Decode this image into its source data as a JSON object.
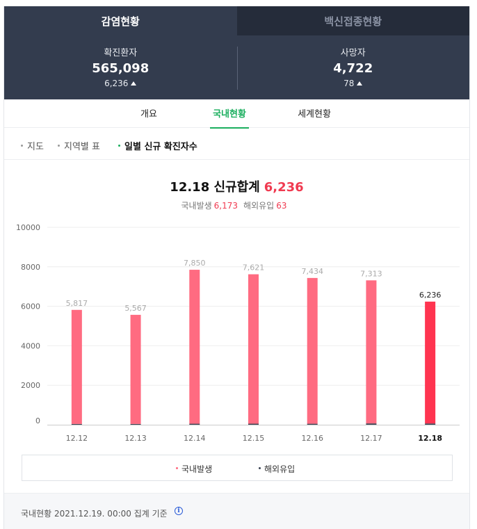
{
  "top_tabs": [
    {
      "label": "감염현황",
      "active": true
    },
    {
      "label": "백신접종현황",
      "active": false
    }
  ],
  "stats": {
    "confirmed": {
      "label": "확진환자",
      "value": "565,098",
      "change": "6,236"
    },
    "deaths": {
      "label": "사망자",
      "value": "4,722",
      "change": "78"
    }
  },
  "sub_tabs": [
    {
      "label": "개요",
      "active": false
    },
    {
      "label": "국내현황",
      "active": true
    },
    {
      "label": "세계현황",
      "active": false
    }
  ],
  "links": [
    {
      "label": "지도",
      "active": false
    },
    {
      "label": "지역별 표",
      "active": false
    },
    {
      "label": "일별 신규 확진자수",
      "active": true
    }
  ],
  "summary": {
    "date_label": "12.18 신규합계",
    "total": "6,236",
    "domestic_label": "국내발생",
    "domestic_value": "6,173",
    "overseas_label": "해외유입",
    "overseas_value": "63"
  },
  "colors": {
    "domestic": "#ff6b81",
    "domestic_latest": "#ff3450",
    "overseas": "#3c4454",
    "accent": "#1aae5e"
  },
  "chart_data": {
    "type": "bar",
    "stacked": true,
    "categories": [
      "12.12",
      "12.13",
      "12.14",
      "12.15",
      "12.16",
      "12.17",
      "12.18"
    ],
    "series": [
      {
        "name": "국내발생",
        "values": [
          5777,
          5527,
          7799,
          7569,
          7384,
          7247,
          6173
        ]
      },
      {
        "name": "해외유입",
        "values": [
          40,
          40,
          51,
          52,
          50,
          66,
          63
        ]
      }
    ],
    "totals": [
      5817,
      5567,
      7850,
      7621,
      7434,
      7313,
      6236
    ],
    "total_labels": [
      "5,817",
      "5,567",
      "7,850",
      "7,621",
      "7,434",
      "7,313",
      "6,236"
    ],
    "y_ticks": [
      0,
      2000,
      4000,
      6000,
      8000,
      10000
    ],
    "ylim": [
      0,
      10000
    ],
    "highlight_index": 6,
    "grid": true,
    "legend": "bottom"
  },
  "footer": {
    "text": "국내현황 2021.12.19. 00:00 집계 기준",
    "info_icon": "info-icon"
  }
}
